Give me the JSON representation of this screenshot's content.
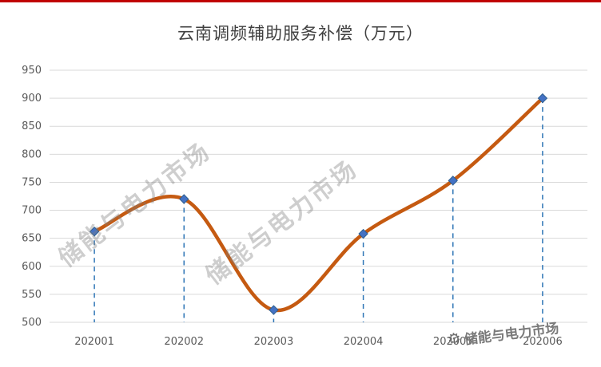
{
  "page": {
    "top_bar_color": "#C00000"
  },
  "chart_data": {
    "type": "line",
    "title": "云南调频辅助服务补偿（万元）",
    "categories": [
      "202001",
      "202002",
      "202003",
      "202004",
      "202005",
      "202006"
    ],
    "values": [
      662,
      720,
      522,
      658,
      753,
      900
    ],
    "ylim": [
      500,
      950
    ],
    "ytick_step": 50,
    "grid": true,
    "legend": "none",
    "smooth": true,
    "line_color": "#C55A11",
    "marker_style": "diamond",
    "marker_color": "#4472C4",
    "marker_edge_color": "#2E5F8F",
    "guide_color": "#2E75B6",
    "grid_color": "#D9D9D9",
    "axis_label_color": "#595959",
    "title_color": "#404040"
  },
  "watermarks": {
    "diagonal_text": "储能与电力市场",
    "brand_text": "储能与电力市场",
    "gear_icon": "⚙"
  }
}
